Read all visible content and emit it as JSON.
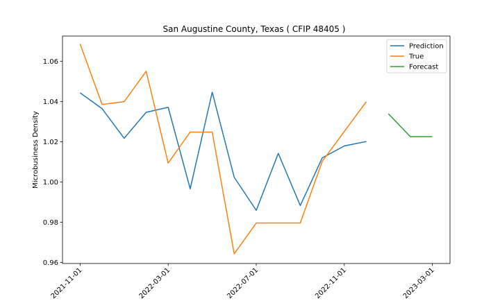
{
  "chart_data": {
    "type": "line",
    "title": "San Augustine County, Texas ( CFIP 48405 )",
    "xlabel": "",
    "ylabel": "Microbusiness Density",
    "x_tick_labels": [
      "2021-11-01",
      "2022-03-01",
      "2022-07-01",
      "2022-11-01",
      "2023-03-01"
    ],
    "x_ticks_months": [
      0,
      4,
      8,
      12,
      16
    ],
    "xlim_months": [
      -0.8,
      16.8
    ],
    "y_ticks": [
      0.96,
      0.98,
      1.0,
      1.02,
      1.04,
      1.06
    ],
    "y_tick_labels": [
      "0.96",
      "0.98",
      "1.00",
      "1.02",
      "1.04",
      "1.06"
    ],
    "ylim": [
      0.9595,
      1.0725
    ],
    "legend_position": "top-right",
    "series": [
      {
        "name": "Prediction",
        "color": "#1f77b4",
        "x_months": [
          0,
          1,
          2,
          3,
          4,
          5,
          6,
          7,
          8,
          9,
          10,
          11,
          12,
          13
        ],
        "values": [
          1.0443,
          1.0364,
          1.0217,
          1.0346,
          1.0371,
          0.9966,
          1.0446,
          1.0023,
          0.9859,
          1.0142,
          0.9883,
          1.012,
          1.0179,
          1.0201
        ]
      },
      {
        "name": "True",
        "color": "#ff7f0e",
        "x_months": [
          0,
          1,
          2,
          3,
          4,
          5,
          6,
          7,
          8,
          9,
          10,
          11,
          13
        ],
        "values": [
          1.0686,
          1.0385,
          1.0399,
          1.055,
          1.0094,
          1.0248,
          1.0248,
          0.9643,
          0.9796,
          0.9796,
          0.9796,
          1.0103,
          1.0399
        ]
      },
      {
        "name": "Forecast",
        "color": "#2ca02c",
        "x_months": [
          14,
          15,
          16
        ],
        "values": [
          1.0339,
          1.0225,
          1.0225
        ]
      }
    ]
  }
}
